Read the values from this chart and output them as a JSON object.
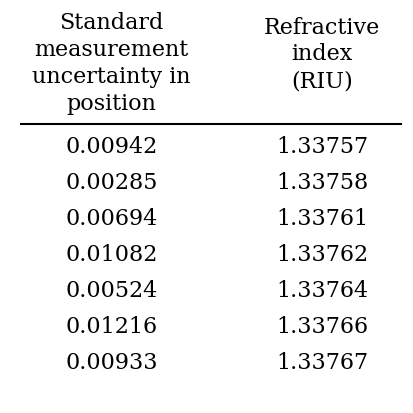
{
  "col1_header": [
    "Standard",
    "measurement",
    "uncertainty in",
    "position"
  ],
  "col2_header": [
    "Refractive",
    "index",
    "(RIU)"
  ],
  "col1_values": [
    "0.00942",
    "0.00285",
    "0.00694",
    "0.01082",
    "0.00524",
    "0.01216",
    "0.00933"
  ],
  "col2_values": [
    "1.33757",
    "1.33758",
    "1.33761",
    "1.33762",
    "1.33764",
    "1.33766",
    "1.33767"
  ],
  "background_color": "#ffffff",
  "text_color": "#000000",
  "header_fontsize": 16,
  "data_fontsize": 16,
  "fig_width": 4.13,
  "fig_height": 4.13,
  "dpi": 100
}
